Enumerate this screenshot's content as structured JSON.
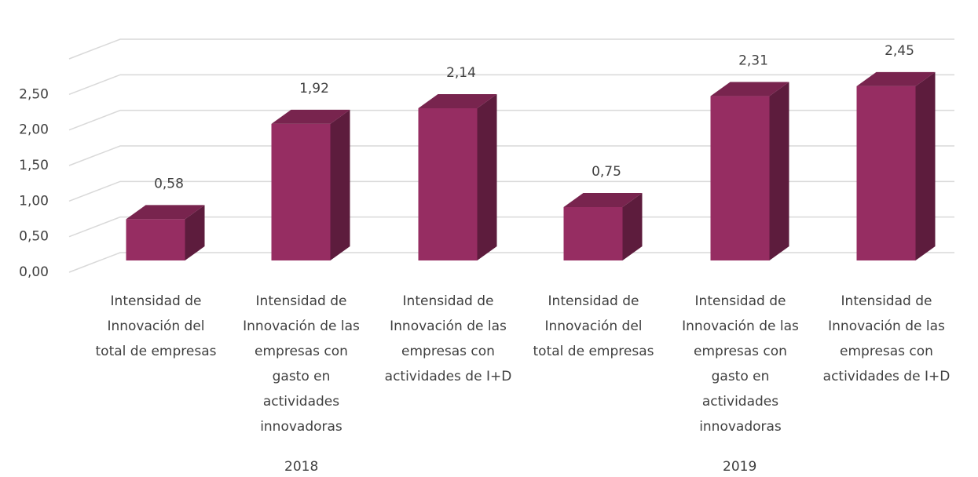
{
  "chart_data": {
    "type": "bar3d",
    "groups": [
      {
        "name": "2018",
        "categories": [
          "Intensidad de Innovación del total de empresas",
          "Intensidad de Innovación de las empresas con gasto en actividades innovadoras",
          "Intensidad de Innovación de las empresas con actividades de I+D"
        ]
      },
      {
        "name": "2019",
        "categories": [
          "Intensidad de Innovación del total de empresas",
          "Intensidad de Innovación de las empresas con gasto en actividades innovadoras",
          "Intensidad de Innovación de las empresas con actividades de I+D"
        ]
      }
    ],
    "values": [
      0.58,
      1.92,
      2.14,
      0.75,
      2.31,
      2.45
    ],
    "value_labels": [
      "0,58",
      "1,92",
      "2,14",
      "0,75",
      "2,31",
      "2,45"
    ],
    "color": "#962d62",
    "ylim": [
      0,
      3
    ],
    "yticks": [
      {
        "value": 0,
        "label": "0,00"
      },
      {
        "value": 0.5,
        "label": "0,50"
      },
      {
        "value": 1,
        "label": "1,00"
      },
      {
        "value": 1.5,
        "label": "1,50"
      },
      {
        "value": 2,
        "label": "2,00"
      },
      {
        "value": 2.5,
        "label": "2,50"
      }
    ],
    "grid": true
  }
}
